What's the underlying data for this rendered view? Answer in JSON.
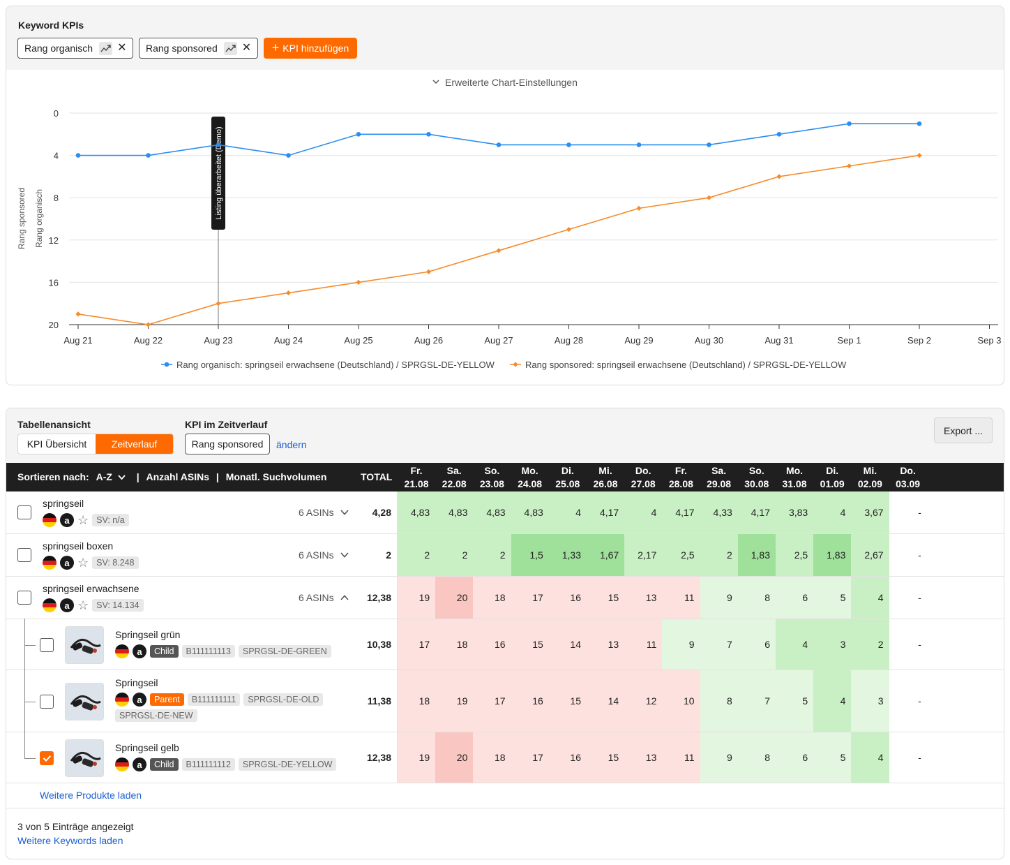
{
  "chart_card": {
    "title": "Keyword KPIs",
    "chips": [
      {
        "label": "Rang organisch",
        "remove": "✕"
      },
      {
        "label": "Rang sponsored",
        "remove": "✕"
      }
    ],
    "add_kpi_label": "KPI hinzufügen",
    "advanced_settings_label": "Erweiterte Chart-Einstellungen",
    "annotation_label": "Listing überarbeitet (Demo)"
  },
  "chart_data": {
    "type": "line",
    "x": [
      "Aug 21",
      "Aug 22",
      "Aug 23",
      "Aug 24",
      "Aug 25",
      "Aug 26",
      "Aug 27",
      "Aug 28",
      "Aug 29",
      "Aug 30",
      "Aug 31",
      "Sep 1",
      "Sep 2"
    ],
    "x_ticks": [
      "Aug 21",
      "Aug 22",
      "Aug 23",
      "Aug 24",
      "Aug 25",
      "Aug 26",
      "Aug 27",
      "Aug 28",
      "Aug 29",
      "Aug 30",
      "Aug 31",
      "Sep 1",
      "Sep 2",
      "Sep 3"
    ],
    "y_ticks": [
      "0",
      "4",
      "8",
      "12",
      "16",
      "20"
    ],
    "ylim": [
      0,
      20
    ],
    "y_inverted": true,
    "ylabel_left": "Rang sponsored",
    "ylabel_right": "Rang organisch",
    "grid": true,
    "legend_position": "bottom",
    "series": [
      {
        "name": "Rang organisch: springseil erwachsene (Deutschland) / SPRGSL-DE-YELLOW",
        "color": "#2b8ef0",
        "values": [
          4,
          4,
          3,
          4,
          2,
          2,
          3,
          3,
          3,
          3,
          2,
          1,
          1
        ]
      },
      {
        "name": "Rang sponsored: springseil erwachsene (Deutschland) / SPRGSL-DE-YELLOW",
        "color": "#f68b2c",
        "values": [
          19,
          20,
          18,
          17,
          16,
          15,
          13,
          11,
          9,
          8,
          6,
          5,
          4
        ]
      }
    ],
    "annotation": {
      "x": "Aug 23",
      "label": "Listing überarbeitet (Demo)"
    }
  },
  "table_card": {
    "view_label": "Tabellenansicht",
    "view_options": [
      "KPI Übersicht",
      "Zeitverlauf"
    ],
    "kpi_label": "KPI im Zeitverlauf",
    "kpi_value": "Rang sponsored",
    "change_link": "ändern",
    "export_label": "Export ...",
    "header": {
      "sort_label": "Sortieren nach:",
      "sort_value": "A-Z",
      "sep1": "|",
      "col_asins": "Anzahl ASINs",
      "sep2": "|",
      "col_volume": "Monatl. Suchvolumen",
      "total": "TOTAL",
      "days": [
        {
          "d": "Fr.",
          "date": "21.08"
        },
        {
          "d": "Sa.",
          "date": "22.08"
        },
        {
          "d": "So.",
          "date": "23.08"
        },
        {
          "d": "Mo.",
          "date": "24.08"
        },
        {
          "d": "Di.",
          "date": "25.08"
        },
        {
          "d": "Mi.",
          "date": "26.08"
        },
        {
          "d": "Do.",
          "date": "27.08"
        },
        {
          "d": "Fr.",
          "date": "28.08"
        },
        {
          "d": "Sa.",
          "date": "29.08"
        },
        {
          "d": "So.",
          "date": "30.08"
        },
        {
          "d": "Mo.",
          "date": "31.08"
        },
        {
          "d": "Di.",
          "date": "01.09"
        },
        {
          "d": "Mi.",
          "date": "02.09"
        },
        {
          "d": "Do.",
          "date": "03.09"
        }
      ]
    },
    "rows": [
      {
        "kind": "keyword",
        "name": "springseil",
        "sv": "SV: n/a",
        "asins": "6 ASINs",
        "total": "4,28",
        "values": [
          "4,83",
          "4,83",
          "4,83",
          "4,83",
          "4",
          "4,17",
          "4",
          "4,17",
          "4,33",
          "4,17",
          "3,83",
          "4",
          "3,67",
          "-"
        ],
        "colors": [
          "g2",
          "g2",
          "g2",
          "g2",
          "g2",
          "g2",
          "g2",
          "g2",
          "g2",
          "g2",
          "g2",
          "g2",
          "g2",
          ""
        ]
      },
      {
        "kind": "keyword",
        "name": "springseil boxen",
        "sv": "SV: 8.248",
        "asins": "6 ASINs",
        "total": "2",
        "values": [
          "2",
          "2",
          "2",
          "1,5",
          "1,33",
          "1,67",
          "2,17",
          "2,5",
          "2",
          "1,83",
          "2,5",
          "1,83",
          "2,67",
          "-"
        ],
        "colors": [
          "g2",
          "g2",
          "g2",
          "g3",
          "g3",
          "g3",
          "g2",
          "g2",
          "g2",
          "g3",
          "g2",
          "g3",
          "g2",
          ""
        ]
      },
      {
        "kind": "keyword",
        "name": "springseil erwachsene",
        "sv": "SV: 14.134",
        "asins": "6 ASINs",
        "total": "12,38",
        "expanded": true,
        "values": [
          "19",
          "20",
          "18",
          "17",
          "16",
          "15",
          "13",
          "11",
          "9",
          "8",
          "6",
          "5",
          "4",
          "-"
        ],
        "colors": [
          "r1",
          "r2",
          "r1",
          "r1",
          "r1",
          "r1",
          "r1",
          "r1",
          "g1",
          "g1",
          "g1",
          "g1",
          "g2",
          ""
        ]
      },
      {
        "kind": "product",
        "name": "Springseil grün",
        "badge": "Child",
        "asin": "B111111113",
        "skus": [
          "SPRGSL-DE-GREEN"
        ],
        "total": "10,38",
        "values": [
          "17",
          "18",
          "16",
          "15",
          "14",
          "13",
          "11",
          "9",
          "7",
          "6",
          "4",
          "3",
          "2",
          "-"
        ],
        "colors": [
          "r1",
          "r1",
          "r1",
          "r1",
          "r1",
          "r1",
          "r1",
          "g1",
          "g1",
          "g1",
          "g2",
          "g2",
          "g2",
          ""
        ]
      },
      {
        "kind": "product",
        "name": "Springseil",
        "badge": "Parent",
        "asin": "B111111111",
        "skus": [
          "SPRGSL-DE-OLD",
          "SPRGSL-DE-NEW"
        ],
        "total": "11,38",
        "values": [
          "18",
          "19",
          "17",
          "16",
          "15",
          "14",
          "12",
          "10",
          "8",
          "7",
          "5",
          "4",
          "3",
          "-"
        ],
        "colors": [
          "r1",
          "r1",
          "r1",
          "r1",
          "r1",
          "r1",
          "r1",
          "r1",
          "g1",
          "g1",
          "g1",
          "g2",
          "g1",
          ""
        ]
      },
      {
        "kind": "product",
        "name": "Springseil gelb",
        "badge": "Child",
        "asin": "B111111112",
        "skus": [
          "SPRGSL-DE-YELLOW"
        ],
        "total": "12,38",
        "checked": true,
        "values": [
          "19",
          "20",
          "18",
          "17",
          "16",
          "15",
          "13",
          "11",
          "9",
          "8",
          "6",
          "5",
          "4",
          "-"
        ],
        "colors": [
          "r1",
          "r2",
          "r1",
          "r1",
          "r1",
          "r1",
          "r1",
          "r1",
          "g1",
          "g1",
          "g1",
          "g1",
          "g2",
          ""
        ]
      }
    ],
    "more_products": "Weitere Produkte laden",
    "entries_info": "3 von 5 Einträge angezeigt",
    "more_keywords": "Weitere Keywords laden"
  },
  "colors": {
    "accent": "#ff6a00",
    "link": "#1a5fd0",
    "organic": "#2b8ef0",
    "sponsored": "#f68b2c",
    "r1": "#fde1df",
    "r2": "#f9c6c2",
    "g1": "#e3f6df",
    "g2": "#c9efc4",
    "g3": "#9fe09a"
  }
}
